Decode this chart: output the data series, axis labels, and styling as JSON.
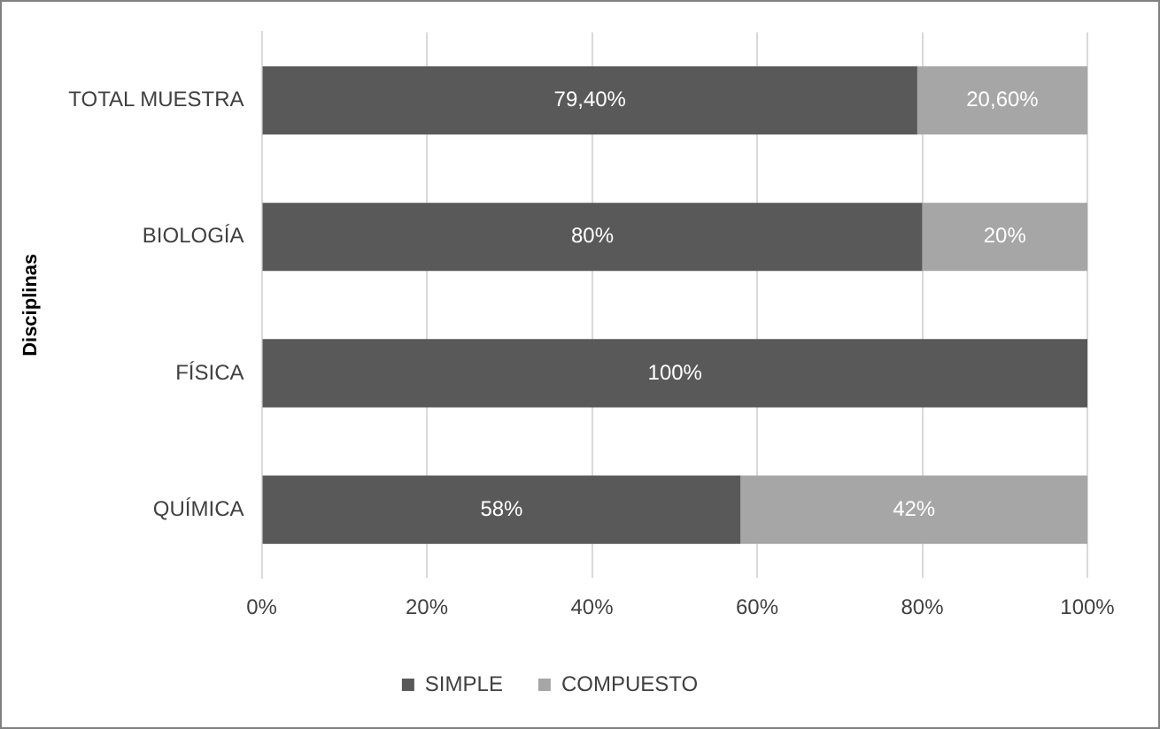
{
  "chart_data": {
    "type": "bar",
    "orientation": "horizontal",
    "stacked": true,
    "ylabel": "Disciplinas",
    "categories": [
      "TOTAL MUESTRA",
      "BIOLOGÍA",
      "FÍSICA",
      "QUÍMICA"
    ],
    "series": [
      {
        "name": "SIMPLE",
        "color": "#595959",
        "values": [
          79.4,
          80,
          100,
          58
        ],
        "value_labels": [
          "79,40%",
          "80%",
          "100%",
          "58%"
        ]
      },
      {
        "name": "COMPUESTO",
        "color": "#a6a6a6",
        "values": [
          20.6,
          20,
          null,
          42
        ],
        "value_labels": [
          "20,60%",
          "20%",
          null,
          "42%"
        ]
      }
    ],
    "xlim": [
      0,
      100
    ],
    "xticks": [
      {
        "value": 0,
        "label": "0%"
      },
      {
        "value": 20,
        "label": "20%"
      },
      {
        "value": 40,
        "label": "40%"
      },
      {
        "value": 60,
        "label": "60%"
      },
      {
        "value": 80,
        "label": "80%"
      },
      {
        "value": 100,
        "label": "100%"
      }
    ],
    "grid": "x",
    "legend": "bottom"
  }
}
